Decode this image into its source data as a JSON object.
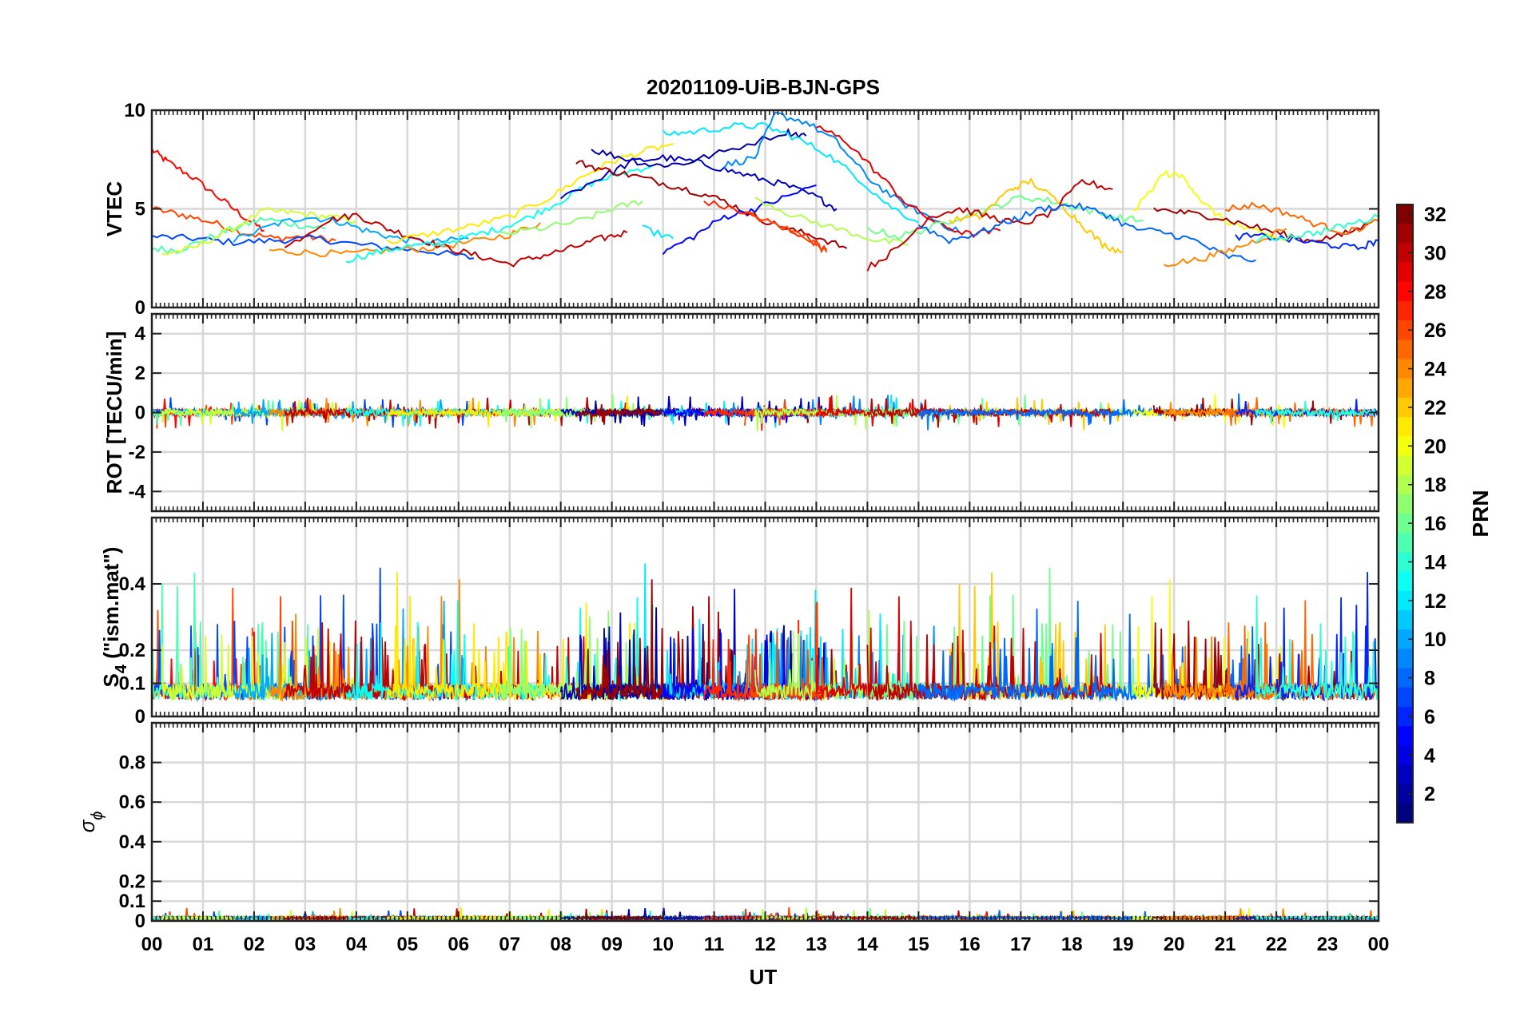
{
  "title": "20201109-UiB-BJN-GPS",
  "xlabel": "UT",
  "x_ticks": [
    "00",
    "01",
    "02",
    "03",
    "04",
    "05",
    "06",
    "07",
    "08",
    "09",
    "10",
    "11",
    "12",
    "13",
    "14",
    "15",
    "16",
    "17",
    "18",
    "19",
    "20",
    "21",
    "22",
    "23",
    "00"
  ],
  "colorbar": {
    "label": "PRN",
    "range": [
      1,
      32
    ],
    "ticks": [
      2,
      4,
      6,
      8,
      10,
      12,
      14,
      16,
      18,
      20,
      22,
      24,
      26,
      28,
      30,
      32
    ],
    "colormap": "jet",
    "colors": [
      "#00008f",
      "#0000ff",
      "#0080ff",
      "#00ffff",
      "#80ff80",
      "#ffff00",
      "#ff8000",
      "#ff0000",
      "#800000"
    ]
  },
  "panels": [
    {
      "id": "vtec",
      "ylabel": "VTEC",
      "ylim": [
        0,
        10
      ],
      "yticks": [
        {
          "v": 0,
          "t": "0"
        },
        {
          "v": 5,
          "t": "5"
        },
        {
          "v": 10,
          "t": "10"
        }
      ]
    },
    {
      "id": "rot",
      "ylabel": "ROT [TECU/min]",
      "ylim": [
        -5,
        5
      ],
      "yticks": [
        {
          "v": -4,
          "t": "-4"
        },
        {
          "v": -2,
          "t": "-2"
        },
        {
          "v": 0,
          "t": "0"
        },
        {
          "v": 2,
          "t": "2"
        },
        {
          "v": 4,
          "t": "4"
        }
      ]
    },
    {
      "id": "s4",
      "ylabel_main": "S",
      "ylabel_sub": "4",
      "ylabel_rest": " (\"ism.mat\")",
      "ylim": [
        0,
        0.6
      ],
      "yticks": [
        {
          "v": 0,
          "t": "0"
        },
        {
          "v": 0.1,
          "t": "0.1"
        },
        {
          "v": 0.2,
          "t": "0.2"
        },
        {
          "v": 0.4,
          "t": "0.4"
        }
      ]
    },
    {
      "id": "sigma",
      "ylabel_main": "σ",
      "ylabel_sub": "ϕ",
      "ylim": [
        0,
        1
      ],
      "yticks": [
        {
          "v": 0,
          "t": "0"
        },
        {
          "v": 0.1,
          "t": "0.1"
        },
        {
          "v": 0.2,
          "t": "0.2"
        },
        {
          "v": 0.4,
          "t": "0.4"
        },
        {
          "v": 0.6,
          "t": "0.6"
        },
        {
          "v": 0.8,
          "t": "0.8"
        }
      ]
    }
  ],
  "chart_data": {
    "type": "line",
    "x_unit": "hours UT",
    "xlim": [
      0,
      24
    ],
    "series": [
      {
        "prn": 28,
        "vtec": [
          [
            0,
            8.0
          ],
          [
            0.3,
            7.4
          ],
          [
            0.8,
            6.6
          ],
          [
            1.3,
            5.6
          ],
          [
            1.8,
            4.6
          ],
          [
            2.2,
            3.9
          ]
        ]
      },
      {
        "prn": 26,
        "vtec": [
          [
            0,
            5.0
          ],
          [
            0.6,
            4.7
          ],
          [
            1.2,
            4.3
          ],
          [
            1.8,
            3.8
          ],
          [
            2.4,
            3.5
          ],
          [
            3.0,
            3.6
          ],
          [
            3.6,
            3.4
          ]
        ]
      },
      {
        "prn": 7,
        "vtec": [
          [
            0,
            3.6
          ],
          [
            0.8,
            3.5
          ],
          [
            1.6,
            3.3
          ],
          [
            2.4,
            3.4
          ],
          [
            3.2,
            3.5
          ],
          [
            4.0,
            3.2
          ],
          [
            4.8,
            3.0
          ],
          [
            5.6,
            2.8
          ],
          [
            6.3,
            2.5
          ]
        ]
      },
      {
        "prn": 15,
        "vtec": [
          [
            0,
            3.0
          ],
          [
            0.5,
            2.9
          ],
          [
            1.0,
            3.4
          ],
          [
            1.6,
            4.0
          ],
          [
            2.2,
            4.5
          ],
          [
            2.8,
            4.2
          ],
          [
            3.4,
            4.0
          ]
        ]
      },
      {
        "prn": 19,
        "vtec": [
          [
            0.2,
            2.7
          ],
          [
            0.8,
            3.0
          ],
          [
            1.5,
            3.9
          ],
          [
            2.2,
            4.9
          ],
          [
            2.8,
            4.8
          ],
          [
            3.4,
            4.6
          ],
          [
            4.0,
            4.4
          ]
        ]
      },
      {
        "prn": 10,
        "vtec": [
          [
            1.6,
            3.4
          ],
          [
            2.4,
            4.2
          ],
          [
            3.0,
            4.6
          ],
          [
            3.6,
            4.4
          ],
          [
            4.2,
            3.9
          ],
          [
            4.8,
            3.5
          ],
          [
            5.5,
            3.3
          ],
          [
            6.2,
            3.5
          ]
        ]
      },
      {
        "prn": 24,
        "vtec": [
          [
            2.3,
            2.9
          ],
          [
            3.0,
            2.8
          ],
          [
            3.8,
            2.7
          ],
          [
            4.6,
            2.9
          ],
          [
            5.4,
            3.0
          ],
          [
            6.2,
            3.3
          ],
          [
            7.0,
            3.7
          ],
          [
            7.6,
            4.3
          ]
        ]
      },
      {
        "prn": 30,
        "vtec": [
          [
            2.6,
            3.0
          ],
          [
            3.4,
            4.4
          ],
          [
            4.0,
            4.7
          ],
          [
            4.6,
            4.0
          ],
          [
            5.2,
            3.5
          ],
          [
            5.8,
            3.0
          ],
          [
            6.4,
            2.6
          ],
          [
            7.0,
            2.2
          ],
          [
            7.6,
            2.6
          ],
          [
            8.2,
            3.0
          ],
          [
            8.8,
            3.5
          ],
          [
            9.3,
            3.8
          ]
        ]
      },
      {
        "prn": 13,
        "vtec": [
          [
            3.8,
            2.4
          ],
          [
            4.4,
            2.8
          ],
          [
            5.0,
            3.1
          ],
          [
            5.6,
            3.2
          ],
          [
            6.2,
            3.6
          ],
          [
            6.8,
            4.0
          ],
          [
            7.4,
            4.6
          ],
          [
            8.0,
            5.4
          ],
          [
            8.6,
            6.3
          ],
          [
            9.2,
            6.8
          ],
          [
            9.8,
            7.2
          ]
        ]
      },
      {
        "prn": 21,
        "vtec": [
          [
            4.6,
            3.3
          ],
          [
            5.4,
            3.7
          ],
          [
            6.2,
            4.1
          ],
          [
            7.0,
            4.6
          ],
          [
            7.8,
            5.6
          ],
          [
            8.4,
            6.6
          ],
          [
            9.0,
            7.4
          ],
          [
            9.6,
            7.9
          ],
          [
            10.2,
            8.3
          ]
        ]
      },
      {
        "prn": 12,
        "vtec": [
          [
            9.6,
            4.0
          ],
          [
            10.2,
            3.5
          ]
        ]
      },
      {
        "prn": 17,
        "vtec": [
          [
            6.8,
            3.7
          ],
          [
            7.6,
            4.0
          ],
          [
            8.4,
            4.4
          ],
          [
            9.0,
            5.0
          ],
          [
            9.6,
            5.4
          ]
        ]
      },
      {
        "prn": 3,
        "vtec": [
          [
            8.0,
            5.6
          ],
          [
            8.8,
            6.6
          ],
          [
            9.4,
            7.4
          ],
          [
            10.0,
            7.6
          ],
          [
            10.6,
            7.4
          ],
          [
            11.2,
            7.0
          ],
          [
            11.8,
            6.6
          ],
          [
            12.4,
            6.2
          ],
          [
            13.0,
            5.6
          ],
          [
            13.4,
            5.0
          ]
        ]
      },
      {
        "prn": 2,
        "vtec": [
          [
            8.6,
            8.0
          ],
          [
            9.2,
            7.6
          ],
          [
            9.8,
            7.2
          ],
          [
            10.4,
            7.3
          ],
          [
            11.2,
            7.9
          ],
          [
            12.4,
            8.9
          ],
          [
            12.8,
            8.7
          ]
        ]
      },
      {
        "prn": 31,
        "vtec": [
          [
            8.3,
            7.4
          ],
          [
            8.8,
            7.0
          ],
          [
            9.4,
            6.7
          ],
          [
            10.0,
            6.3
          ],
          [
            10.6,
            5.9
          ],
          [
            11.2,
            5.4
          ],
          [
            11.8,
            4.6
          ],
          [
            12.4,
            4.0
          ],
          [
            13.0,
            3.6
          ],
          [
            13.6,
            3.0
          ]
        ]
      },
      {
        "prn": 12,
        "vtec": [
          [
            10.0,
            8.8
          ],
          [
            10.6,
            8.9
          ],
          [
            11.4,
            9.2
          ],
          [
            12.0,
            9.2
          ],
          [
            12.6,
            8.6
          ],
          [
            13.2,
            7.8
          ],
          [
            13.8,
            6.6
          ],
          [
            14.4,
            5.2
          ],
          [
            15.0,
            4.3
          ]
        ]
      },
      {
        "prn": 9,
        "vtec": [
          [
            11.2,
            7.2
          ],
          [
            11.8,
            7.6
          ],
          [
            12.2,
            9.8
          ],
          [
            12.8,
            9.4
          ],
          [
            13.4,
            8.4
          ],
          [
            14.0,
            6.6
          ],
          [
            14.6,
            5.4
          ],
          [
            15.2,
            4.6
          ],
          [
            15.8,
            3.8
          ]
        ]
      },
      {
        "prn": 5,
        "vtec": [
          [
            10.0,
            2.8
          ],
          [
            10.6,
            3.6
          ],
          [
            11.2,
            4.6
          ],
          [
            11.8,
            5.0
          ],
          [
            12.4,
            5.6
          ],
          [
            13.0,
            6.2
          ]
        ]
      },
      {
        "prn": 27,
        "vtec": [
          [
            10.8,
            5.4
          ],
          [
            11.6,
            4.8
          ],
          [
            12.2,
            4.2
          ],
          [
            12.8,
            3.6
          ],
          [
            13.2,
            2.9
          ]
        ]
      },
      {
        "prn": 26,
        "vtec": [
          [
            11.6,
            4.8
          ],
          [
            12.2,
            4.2
          ],
          [
            12.8,
            3.6
          ],
          [
            13.2,
            2.8
          ]
        ]
      },
      {
        "prn": 18,
        "vtec": [
          [
            11.8,
            5.6
          ],
          [
            12.6,
            4.6
          ],
          [
            13.4,
            4.0
          ],
          [
            14.2,
            3.4
          ],
          [
            14.8,
            3.2
          ]
        ]
      },
      {
        "prn": 29,
        "vtec": [
          [
            13.0,
            9.2
          ],
          [
            13.6,
            8.4
          ],
          [
            14.2,
            6.8
          ],
          [
            14.8,
            5.2
          ],
          [
            15.4,
            4.2
          ],
          [
            16.0,
            3.7
          ],
          [
            16.6,
            3.9
          ]
        ]
      },
      {
        "prn": 16,
        "vtec": [
          [
            14.0,
            4.0
          ],
          [
            14.6,
            3.6
          ],
          [
            15.2,
            4.0
          ],
          [
            15.8,
            4.6
          ],
          [
            16.4,
            5.0
          ],
          [
            17.0,
            5.6
          ],
          [
            17.6,
            5.4
          ],
          [
            18.2,
            5.0
          ],
          [
            18.8,
            4.6
          ],
          [
            19.4,
            4.4
          ]
        ]
      },
      {
        "prn": 22,
        "vtec": [
          [
            15.6,
            4.4
          ],
          [
            16.2,
            4.6
          ],
          [
            16.8,
            6.0
          ],
          [
            17.2,
            6.4
          ],
          [
            17.8,
            5.2
          ],
          [
            18.2,
            4.2
          ],
          [
            18.6,
            3.2
          ],
          [
            19.0,
            2.8
          ]
        ]
      },
      {
        "prn": 30,
        "vtec": [
          [
            14.0,
            2.0
          ],
          [
            14.6,
            3.0
          ],
          [
            15.2,
            4.6
          ],
          [
            15.8,
            5.0
          ],
          [
            16.4,
            4.6
          ],
          [
            17.0,
            4.2
          ],
          [
            17.6,
            4.8
          ],
          [
            18.2,
            6.4
          ],
          [
            18.8,
            6.0
          ]
        ]
      },
      {
        "prn": 8,
        "vtec": [
          [
            15.0,
            4.2
          ],
          [
            15.6,
            3.4
          ],
          [
            16.2,
            3.8
          ],
          [
            16.8,
            4.4
          ],
          [
            17.4,
            5.0
          ],
          [
            18.0,
            5.2
          ],
          [
            18.6,
            4.8
          ],
          [
            19.2,
            4.0
          ],
          [
            19.8,
            3.8
          ],
          [
            20.4,
            3.4
          ],
          [
            21.0,
            2.6
          ],
          [
            21.6,
            2.4
          ]
        ]
      },
      {
        "prn": 20,
        "vtec": [
          [
            19.2,
            4.8
          ],
          [
            19.8,
            6.8
          ],
          [
            20.2,
            6.6
          ],
          [
            20.6,
            5.2
          ],
          [
            21.0,
            4.4
          ],
          [
            21.6,
            3.8
          ],
          [
            22.2,
            3.4
          ]
        ]
      },
      {
        "prn": 31,
        "vtec": [
          [
            19.6,
            5.0
          ],
          [
            20.2,
            4.8
          ],
          [
            20.8,
            4.6
          ],
          [
            21.4,
            4.2
          ],
          [
            22.0,
            3.8
          ],
          [
            22.6,
            3.4
          ],
          [
            23.2,
            3.6
          ],
          [
            23.8,
            4.2
          ]
        ]
      },
      {
        "prn": 24,
        "vtec": [
          [
            19.8,
            2.2
          ],
          [
            20.4,
            2.4
          ],
          [
            21.0,
            2.8
          ],
          [
            21.6,
            3.4
          ],
          [
            22.2,
            4.0
          ]
        ]
      },
      {
        "prn": 25,
        "vtec": [
          [
            21.0,
            5.0
          ],
          [
            21.6,
            5.2
          ],
          [
            22.2,
            4.8
          ],
          [
            22.8,
            4.2
          ],
          [
            23.4,
            3.8
          ],
          [
            24.0,
            4.4
          ]
        ]
      },
      {
        "prn": 6,
        "vtec": [
          [
            21.2,
            3.6
          ],
          [
            21.8,
            3.6
          ],
          [
            22.4,
            3.4
          ],
          [
            23.0,
            3.2
          ],
          [
            23.6,
            3.0
          ],
          [
            24.0,
            3.4
          ]
        ]
      },
      {
        "prn": 14,
        "vtec": [
          [
            21.6,
            3.4
          ],
          [
            22.2,
            3.6
          ],
          [
            22.8,
            3.8
          ],
          [
            23.4,
            4.2
          ],
          [
            24.0,
            4.6
          ]
        ]
      }
    ]
  }
}
